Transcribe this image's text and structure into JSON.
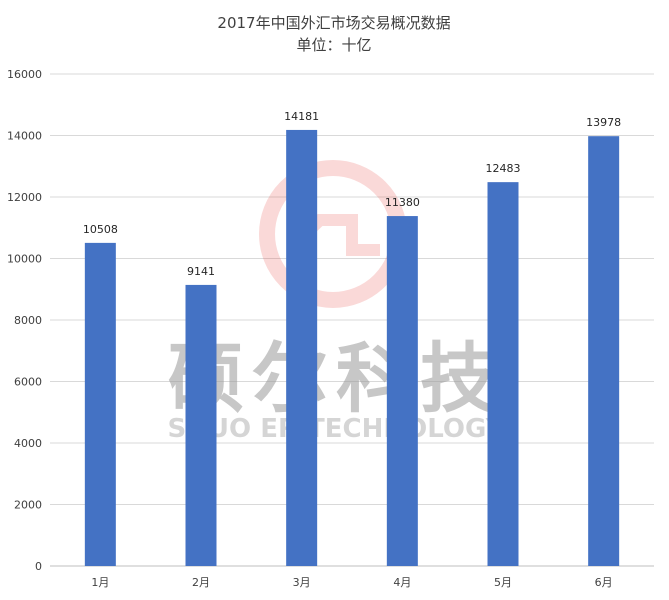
{
  "chart_data": {
    "type": "bar",
    "title": "2017年中国外汇市场交易概况数据",
    "subtitle": "单位：十亿",
    "categories": [
      "1月",
      "2月",
      "3月",
      "4月",
      "5月",
      "6月"
    ],
    "values": [
      10508,
      9141,
      14181,
      11380,
      12483,
      13978
    ],
    "xlabel": "",
    "ylabel": "",
    "ylim": [
      0,
      16000
    ],
    "yticks": [
      "0",
      "2000",
      "4000",
      "6000",
      "8000",
      "10000",
      "12000",
      "14000",
      "16000"
    ],
    "grid": true,
    "legend": "none",
    "bar_color": "#4472c4"
  },
  "watermark": {
    "cn": "硕尔科技",
    "en": "SHUO ER TECHNOLOGY",
    "logo_color": "#e53935"
  }
}
